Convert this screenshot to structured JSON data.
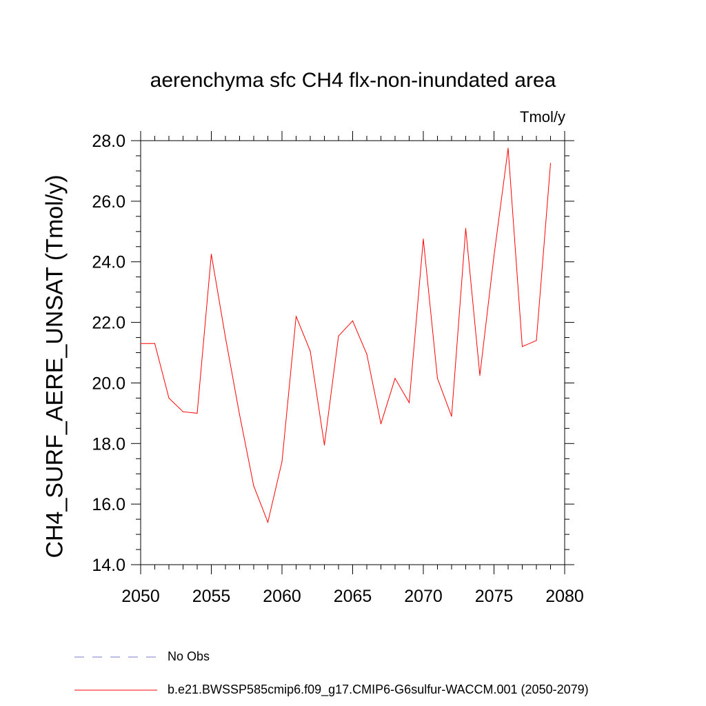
{
  "chart_data": {
    "type": "line",
    "title": "aerenchyma sfc CH4 flx-non-inundated area",
    "units_label": "Tmol/y",
    "ylabel": "CH4_SURF_AERE_UNSAT  (Tmol/y)",
    "xlabel": "",
    "xlim": [
      2050,
      2080
    ],
    "ylim": [
      14.0,
      28.0
    ],
    "x_ticks": [
      "2050",
      "2055",
      "2060",
      "2065",
      "2070",
      "2075",
      "2080"
    ],
    "y_ticks": [
      "14.0",
      "16.0",
      "18.0",
      "20.0",
      "22.0",
      "24.0",
      "26.0",
      "28.0"
    ],
    "grid": false,
    "legend_placement": "bottom",
    "series": [
      {
        "name": "b.e21.BWSSP585cmip6.f09_g17.CMIP6-G6sulfur-WACCM.001 (2050-2079)",
        "color": "#ff0000",
        "style": "solid",
        "x": [
          2050,
          2051,
          2052,
          2053,
          2054,
          2055,
          2056,
          2057,
          2058,
          2059,
          2060,
          2061,
          2062,
          2063,
          2064,
          2065,
          2066,
          2067,
          2068,
          2069,
          2070,
          2071,
          2072,
          2073,
          2074,
          2075,
          2076,
          2077,
          2078,
          2079
        ],
        "y": [
          21.3,
          21.3,
          19.5,
          19.05,
          19.0,
          24.25,
          21.5,
          18.95,
          16.6,
          15.4,
          17.4,
          22.2,
          21.05,
          17.95,
          21.55,
          22.05,
          20.95,
          18.65,
          20.15,
          19.35,
          24.75,
          20.15,
          18.9,
          25.1,
          20.25,
          24.2,
          27.75,
          21.2,
          21.4,
          27.25
        ]
      },
      {
        "name": "No Obs",
        "color": "#7777cc",
        "style": "dashed",
        "x": [],
        "y": []
      }
    ]
  }
}
